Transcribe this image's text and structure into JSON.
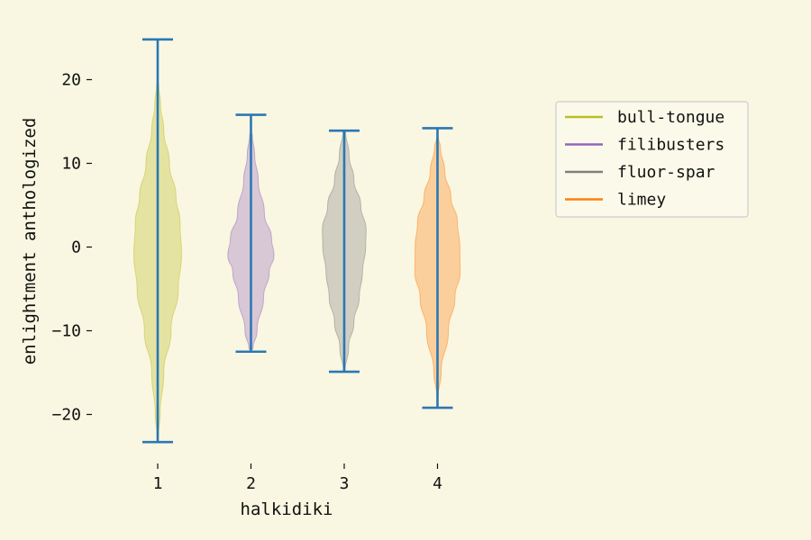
{
  "chart_data": {
    "type": "violin",
    "xlabel": "halkidiki",
    "ylabel": "enlightment anthologized",
    "categories": [
      "1",
      "2",
      "3",
      "4"
    ],
    "yticks": [
      20,
      10,
      0,
      -10,
      -20
    ],
    "ytick_labels": [
      "20",
      "10",
      "0",
      "−10",
      "−20"
    ],
    "ylim": [
      -26,
      27
    ],
    "grid": false,
    "legend_position": "right",
    "colors": {
      "background": "#f9f7e1",
      "whisker": "#2a77b4",
      "legend_border": "#cccccc",
      "legend_background": "#fbfaea"
    },
    "series": [
      {
        "name": "bull-tongue",
        "color": "#bcbd22",
        "min": -23.3,
        "max": 24.8,
        "body_top": 19.5,
        "body_bottom": -22.5,
        "profile": [
          [
            -22.5,
            0.03
          ],
          [
            -20,
            0.1
          ],
          [
            -15,
            0.25
          ],
          [
            -10,
            0.55
          ],
          [
            -5,
            0.85
          ],
          [
            -1,
            0.98
          ],
          [
            3,
            0.92
          ],
          [
            6,
            0.75
          ],
          [
            10,
            0.48
          ],
          [
            14,
            0.25
          ],
          [
            17,
            0.12
          ],
          [
            19.5,
            0.04
          ]
        ]
      },
      {
        "name": "filibusters",
        "color": "#9467bd",
        "min": -12.5,
        "max": 15.8,
        "body_top": 13.5,
        "body_bottom": -12.2,
        "profile": [
          [
            -12.2,
            0.08
          ],
          [
            -10,
            0.25
          ],
          [
            -6,
            0.52
          ],
          [
            -3,
            0.75
          ],
          [
            -1,
            0.95
          ],
          [
            1,
            0.85
          ],
          [
            4,
            0.55
          ],
          [
            8,
            0.3
          ],
          [
            11,
            0.15
          ],
          [
            13.5,
            0.05
          ]
        ]
      },
      {
        "name": "fluor-spar",
        "color": "#7f7f7f",
        "min": -14.9,
        "max": 13.9,
        "body_top": 13.9,
        "body_bottom": -14.9,
        "profile": [
          [
            -14.9,
            0.03
          ],
          [
            -12,
            0.18
          ],
          [
            -9,
            0.4
          ],
          [
            -6,
            0.62
          ],
          [
            -3,
            0.75
          ],
          [
            0,
            0.88
          ],
          [
            2,
            0.9
          ],
          [
            5,
            0.68
          ],
          [
            8,
            0.4
          ],
          [
            11,
            0.2
          ],
          [
            13.9,
            0.05
          ]
        ]
      },
      {
        "name": "limey",
        "color": "#ff7f0e",
        "min": -19.2,
        "max": 14.2,
        "body_top": 13.0,
        "body_bottom": -18.0,
        "profile": [
          [
            -18,
            0.02
          ],
          [
            -15,
            0.15
          ],
          [
            -10,
            0.45
          ],
          [
            -6,
            0.72
          ],
          [
            -3,
            0.93
          ],
          [
            0,
            0.92
          ],
          [
            3,
            0.82
          ],
          [
            6,
            0.55
          ],
          [
            9,
            0.3
          ],
          [
            12,
            0.12
          ],
          [
            13,
            0.04
          ]
        ]
      }
    ]
  }
}
